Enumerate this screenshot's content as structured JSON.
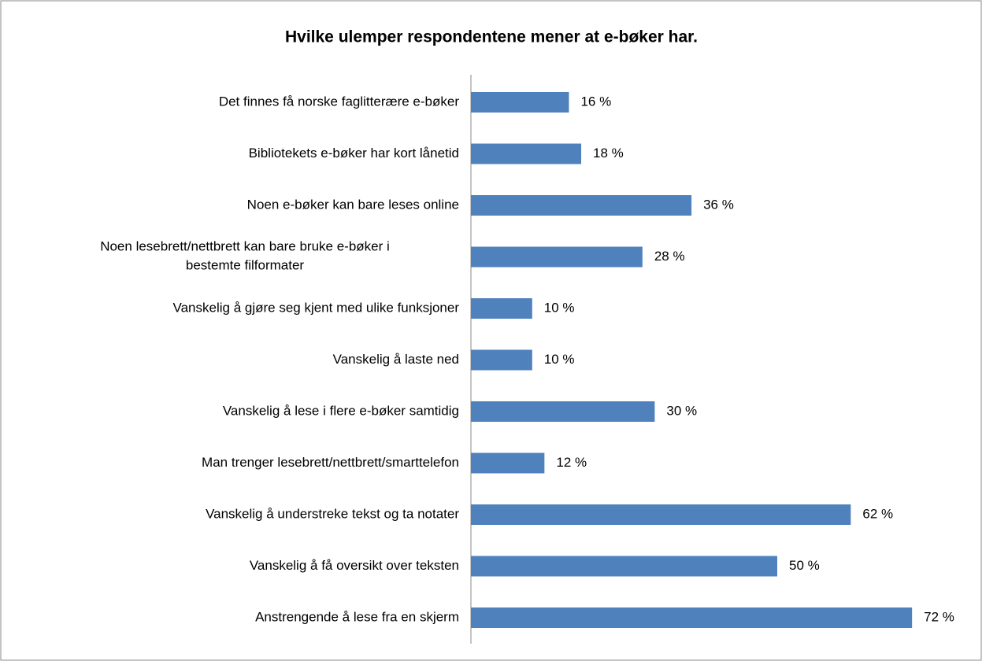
{
  "chart_data": {
    "type": "bar",
    "orientation": "horizontal",
    "title": "Hvilke ulemper respondentene mener at e-bøker har.",
    "categories": [
      "Det finnes få norske faglitterære e-bøker",
      "Bibliotekets e-bøker har kort lånetid",
      "Noen e-bøker kan bare leses online",
      "Noen lesebrett/nettbrett kan bare bruke e-bøker i\nbestemte filformater",
      "Vanskelig å gjøre seg kjent med ulike funksjoner",
      "Vanskelig å laste ned",
      "Vanskelig å lese i flere e-bøker samtidig",
      "Man trenger lesebrett/nettbrett/smarttelefon",
      "Vanskelig å understreke tekst og ta notater",
      "Vanskelig å få oversikt over teksten",
      "Anstrengende å lese fra en skjerm"
    ],
    "values": [
      16,
      18,
      36,
      28,
      10,
      10,
      30,
      12,
      62,
      50,
      72
    ],
    "value_labels": [
      "16 %",
      "18 %",
      "36 %",
      "28 %",
      "10 %",
      "10 %",
      "30 %",
      "12 %",
      "62 %",
      "50 %",
      "72 %"
    ],
    "color": "#4f81bd"
  }
}
